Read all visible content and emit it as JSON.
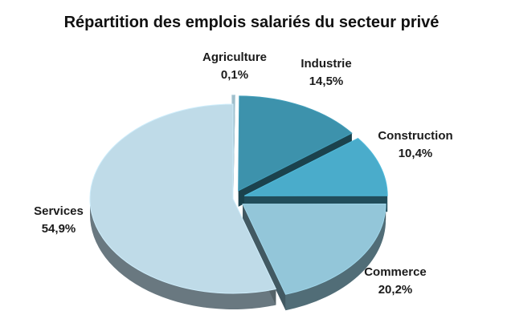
{
  "chart_data": {
    "type": "pie",
    "title": "Répartition des emplois salariés du secteur privé",
    "slices": [
      {
        "name": "Agriculture",
        "value": 0.1,
        "value_label": "0,1%",
        "color": "#9fbdc9",
        "exploded": true
      },
      {
        "name": "Industrie",
        "value": 14.5,
        "value_label": "14,5%",
        "color": "#3d92ac",
        "exploded": true
      },
      {
        "name": "Construction",
        "value": 10.4,
        "value_label": "10,4%",
        "color": "#4aaccb",
        "exploded": true
      },
      {
        "name": "Commerce",
        "value": 20.2,
        "value_label": "20,2%",
        "color": "#93c6d9",
        "exploded": true
      },
      {
        "name": "Services",
        "value": 54.9,
        "value_label": "54,9%",
        "color": "#bfdbe8",
        "exploded": false
      }
    ],
    "style": "3d-exploded",
    "legend": "none"
  }
}
